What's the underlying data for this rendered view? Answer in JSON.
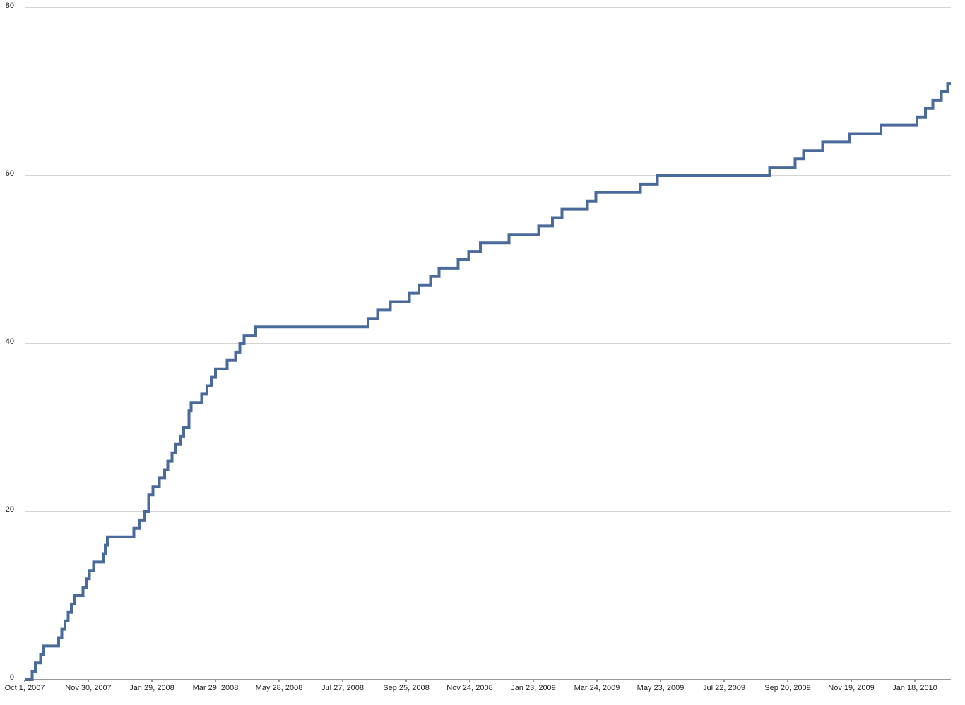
{
  "chart_data": {
    "type": "step-line",
    "series": [
      {
        "color": "#4a6a9b",
        "x": [
          "2007-10-01",
          "2007-10-08",
          "2007-10-11",
          "2007-10-16",
          "2007-10-19",
          "2007-11-02",
          "2007-11-05",
          "2007-11-08",
          "2007-11-11",
          "2007-11-14",
          "2007-11-17",
          "2007-11-25",
          "2007-11-28",
          "2007-12-01",
          "2007-12-05",
          "2007-12-14",
          "2007-12-16",
          "2007-12-18",
          "2008-01-12",
          "2008-01-17",
          "2008-01-22",
          "2008-01-26",
          "2008-01-30",
          "2008-02-05",
          "2008-02-10",
          "2008-02-13",
          "2008-02-17",
          "2008-02-20",
          "2008-02-25",
          "2008-02-28",
          "2008-03-04",
          "2008-03-06",
          "2008-03-16",
          "2008-03-21",
          "2008-03-25",
          "2008-03-29",
          "2008-04-09",
          "2008-04-17",
          "2008-04-21",
          "2008-04-25",
          "2008-05-06",
          "2008-08-20",
          "2008-08-29",
          "2008-09-10",
          "2008-09-28",
          "2008-10-07",
          "2008-10-18",
          "2008-10-26",
          "2008-11-13",
          "2008-11-23",
          "2008-12-04",
          "2008-12-31",
          "2009-01-28",
          "2009-02-10",
          "2009-02-19",
          "2009-03-15",
          "2009-03-23",
          "2009-05-04",
          "2009-05-20",
          "2009-09-03",
          "2009-09-27",
          "2009-10-05",
          "2009-10-23",
          "2009-11-17",
          "2009-12-17",
          "2010-01-20",
          "2010-01-28",
          "2010-02-04",
          "2010-02-12",
          "2010-02-18"
        ],
        "values": [
          0,
          1,
          2,
          3,
          4,
          5,
          6,
          7,
          8,
          9,
          10,
          11,
          12,
          13,
          14,
          15,
          16,
          17,
          18,
          19,
          20,
          22,
          23,
          24,
          25,
          26,
          27,
          28,
          29,
          30,
          32,
          33,
          34,
          35,
          36,
          37,
          38,
          39,
          40,
          41,
          42,
          43,
          44,
          45,
          46,
          47,
          48,
          49,
          50,
          51,
          52,
          53,
          54,
          55,
          56,
          57,
          58,
          59,
          60,
          61,
          62,
          63,
          64,
          65,
          66,
          67,
          68,
          69,
          70,
          71
        ]
      }
    ],
    "xlim": [
      "2007-10-01",
      "2010-02-21"
    ],
    "xticks": [
      {
        "value": "2007-10-01",
        "label": "Oct 1, 2007"
      },
      {
        "value": "2007-11-30",
        "label": "Nov 30, 2007"
      },
      {
        "value": "2008-01-29",
        "label": "Jan 29, 2008"
      },
      {
        "value": "2008-03-29",
        "label": "Mar 29, 2008"
      },
      {
        "value": "2008-05-28",
        "label": "May 28, 2008"
      },
      {
        "value": "2008-07-27",
        "label": "Jul 27, 2008"
      },
      {
        "value": "2008-09-25",
        "label": "Sep 25, 2008"
      },
      {
        "value": "2008-11-24",
        "label": "Nov 24, 2008"
      },
      {
        "value": "2009-01-23",
        "label": "Jan 23, 2009"
      },
      {
        "value": "2009-03-24",
        "label": "Mar 24, 2009"
      },
      {
        "value": "2009-05-23",
        "label": "May 23, 2009"
      },
      {
        "value": "2009-07-22",
        "label": "Jul 22, 2009"
      },
      {
        "value": "2009-09-20",
        "label": "Sep 20, 2009"
      },
      {
        "value": "2009-11-19",
        "label": "Nov 19, 2009"
      },
      {
        "value": "2010-01-18",
        "label": "Jan 18, 2010"
      }
    ],
    "ylim": [
      0,
      80
    ],
    "yticks": [
      0,
      20,
      40,
      60,
      80
    ],
    "grid": true
  }
}
